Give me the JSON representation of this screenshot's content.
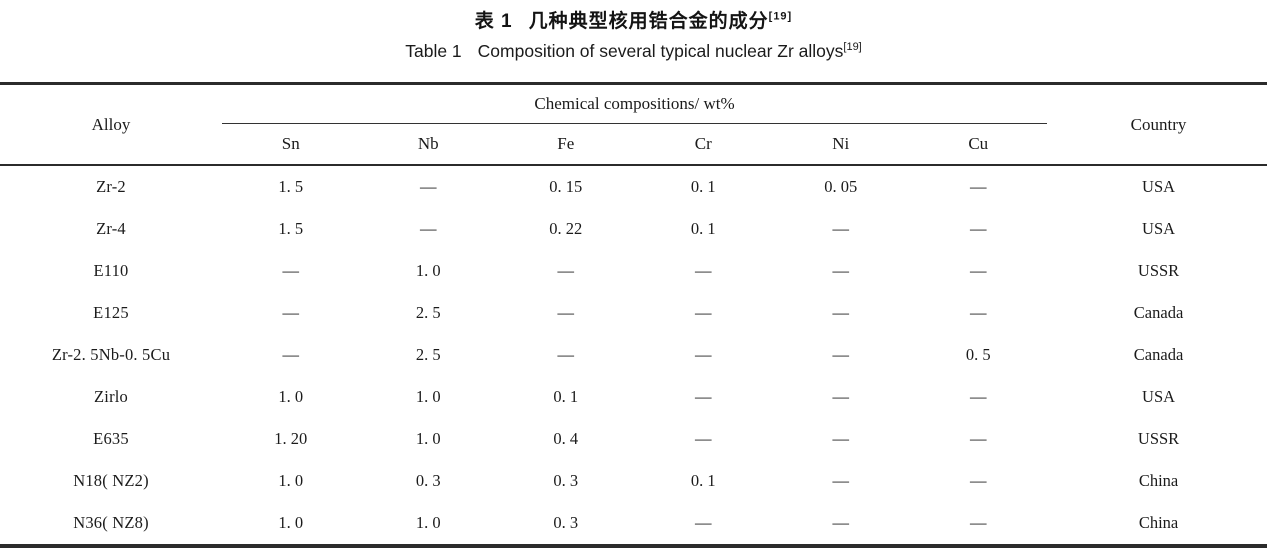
{
  "page": {
    "background": "#ffffff",
    "text_color": "#1b1b1b",
    "rule_color": "#2b2b2b"
  },
  "title": {
    "zh": {
      "label": "表 1",
      "text": "几种典型核用锆合金的成分",
      "ref": "[19]"
    },
    "en": {
      "label": "Table 1",
      "text": "Composition of several typical nuclear Zr alloys",
      "ref": "[19]"
    }
  },
  "table": {
    "header": {
      "alloy": "Alloy",
      "group": "Chemical compositions/ wt%",
      "elements": [
        "Sn",
        "Nb",
        "Fe",
        "Cr",
        "Ni",
        "Cu"
      ],
      "country": "Country"
    },
    "rows": [
      {
        "alloy": "Zr-2",
        "sn": "1. 5",
        "nb": "—",
        "fe": "0. 15",
        "cr": "0. 1",
        "ni": "0. 05",
        "cu": "—",
        "country": "USA"
      },
      {
        "alloy": "Zr-4",
        "sn": "1. 5",
        "nb": "—",
        "fe": "0. 22",
        "cr": "0. 1",
        "ni": "—",
        "cu": "—",
        "country": "USA"
      },
      {
        "alloy": "E110",
        "sn": "—",
        "nb": "1. 0",
        "fe": "—",
        "cr": "—",
        "ni": "—",
        "cu": "—",
        "country": "USSR"
      },
      {
        "alloy": "E125",
        "sn": "—",
        "nb": "2. 5",
        "fe": "—",
        "cr": "—",
        "ni": "—",
        "cu": "—",
        "country": "Canada"
      },
      {
        "alloy": "Zr-2. 5Nb-0. 5Cu",
        "sn": "—",
        "nb": "2. 5",
        "fe": "—",
        "cr": "—",
        "ni": "—",
        "cu": "0. 5",
        "country": "Canada"
      },
      {
        "alloy": "Zirlo",
        "sn": "1. 0",
        "nb": "1. 0",
        "fe": "0. 1",
        "cr": "—",
        "ni": "—",
        "cu": "—",
        "country": "USA"
      },
      {
        "alloy": "E635",
        "sn": "1. 20",
        "nb": "1. 0",
        "fe": "0. 4",
        "cr": "—",
        "ni": "—",
        "cu": "—",
        "country": "USSR"
      },
      {
        "alloy": "N18( NZ2)",
        "sn": "1. 0",
        "nb": "0. 3",
        "fe": "0. 3",
        "cr": "0. 1",
        "ni": "—",
        "cu": "—",
        "country": "China"
      },
      {
        "alloy": "N36( NZ8)",
        "sn": "1. 0",
        "nb": "1. 0",
        "fe": "0. 3",
        "cr": "—",
        "ni": "—",
        "cu": "—",
        "country": "China"
      }
    ]
  }
}
